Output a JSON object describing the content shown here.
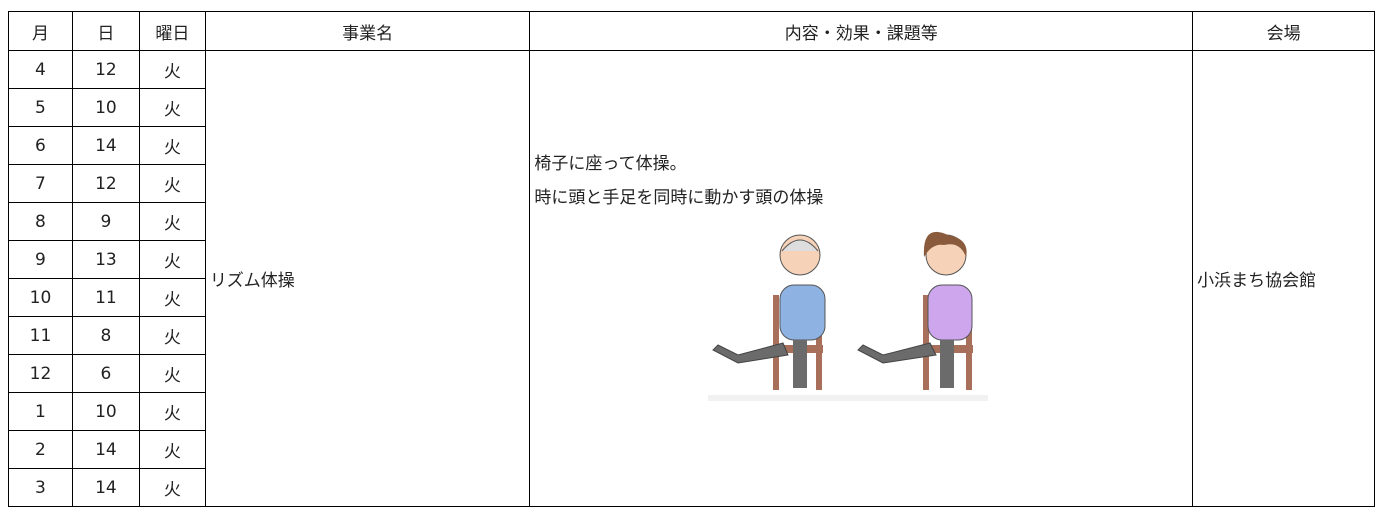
{
  "table": {
    "header": [
      "月",
      "日",
      "曜日",
      "事業名",
      "内容・効果・課題等",
      "会場"
    ],
    "rows": [
      [
        "4",
        "12",
        "火"
      ],
      [
        "5",
        "10",
        "火"
      ],
      [
        "6",
        "14",
        "火"
      ],
      [
        "7",
        "12",
        "火"
      ],
      [
        "8",
        "9",
        "火"
      ],
      [
        "9",
        "13",
        "火"
      ],
      [
        "10",
        "11",
        "火"
      ],
      [
        "11",
        "8",
        "火"
      ],
      [
        "12",
        "6",
        "火"
      ],
      [
        "1",
        "10",
        "火"
      ],
      [
        "2",
        "14",
        "火"
      ],
      [
        "3",
        "14",
        "火"
      ]
    ],
    "event": "リズム体操",
    "content": [
      "椅子に座って体操。",
      "時に頭と手足を同時に動かす頭の体操"
    ],
    "venue": "小浜まち協会館"
  }
}
